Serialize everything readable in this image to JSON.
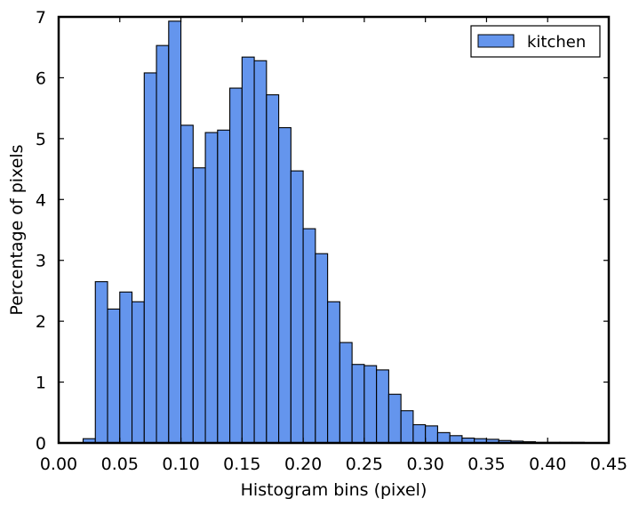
{
  "chart_data": {
    "type": "bar",
    "title": "",
    "xlabel": "Histogram bins (pixel)",
    "ylabel": "Percentage of pixels",
    "xlim": [
      0.0,
      0.45
    ],
    "ylim": [
      0,
      7
    ],
    "bin_width": 0.01,
    "bar_color": "#6495ED",
    "grid": false,
    "legend_position": "top-right",
    "x_ticks": [
      "0.00",
      "0.05",
      "0.10",
      "0.15",
      "0.20",
      "0.25",
      "0.30",
      "0.35",
      "0.40",
      "0.45"
    ],
    "y_ticks": [
      "0",
      "1",
      "2",
      "3",
      "4",
      "5",
      "6",
      "7"
    ],
    "series": [
      {
        "name": "kitchen",
        "bin_starts": [
          0.02,
          0.03,
          0.04,
          0.05,
          0.06,
          0.07,
          0.08,
          0.09,
          0.1,
          0.11,
          0.12,
          0.13,
          0.14,
          0.15,
          0.16,
          0.17,
          0.18,
          0.19,
          0.2,
          0.21,
          0.22,
          0.23,
          0.24,
          0.25,
          0.26,
          0.27,
          0.28,
          0.29,
          0.3,
          0.31,
          0.32,
          0.33,
          0.34,
          0.35,
          0.36,
          0.37,
          0.38,
          0.39,
          0.4,
          0.41,
          0.42
        ],
        "values": [
          0.07,
          2.65,
          2.2,
          2.48,
          2.32,
          6.08,
          6.53,
          6.93,
          5.22,
          4.52,
          5.1,
          5.14,
          5.83,
          6.34,
          6.28,
          5.72,
          5.18,
          4.47,
          3.52,
          3.11,
          2.32,
          1.65,
          1.29,
          1.27,
          1.2,
          0.8,
          0.53,
          0.3,
          0.28,
          0.17,
          0.12,
          0.08,
          0.07,
          0.06,
          0.04,
          0.03,
          0.02,
          0.01,
          0.01,
          0.01,
          0.01
        ]
      }
    ]
  }
}
